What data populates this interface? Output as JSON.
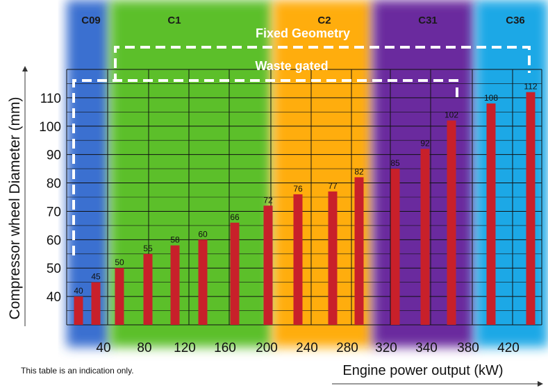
{
  "chart_data": {
    "type": "bar",
    "xlabel": "Engine power output (kW)",
    "ylabel": "Compressor wheel Diameter (mm)",
    "ylim": [
      30,
      120
    ],
    "yticks": [
      40,
      50,
      60,
      70,
      80,
      90,
      100,
      110
    ],
    "xtick_labels": [
      "40",
      "80",
      "120",
      "160",
      "200",
      "240",
      "280",
      "320",
      "340",
      "380",
      "420"
    ],
    "values": [
      40,
      45,
      50,
      55,
      58,
      60,
      66,
      72,
      76,
      77,
      82,
      85,
      92,
      102,
      108,
      112
    ],
    "value_labels": [
      "40",
      "45",
      "50",
      "55",
      "58",
      "60",
      "66",
      "72",
      "76",
      "77",
      "82",
      "85",
      "92",
      "102",
      "108",
      "112"
    ],
    "bar_color": "#c8202a",
    "grid": true,
    "bands": [
      {
        "label": "C09",
        "color": "#3b6fd0"
      },
      {
        "label": "C1",
        "color": "#5cbf2a"
      },
      {
        "label": "C2",
        "color": "#ffad0f"
      },
      {
        "label": "C31",
        "color": "#6a2a9e"
      },
      {
        "label": "C36",
        "color": "#1fa8e6"
      }
    ],
    "annotations": {
      "fixed_geometry": "Fixed Geometry",
      "waste_gated": "Waste gated"
    },
    "note": "This table is an indication only."
  }
}
